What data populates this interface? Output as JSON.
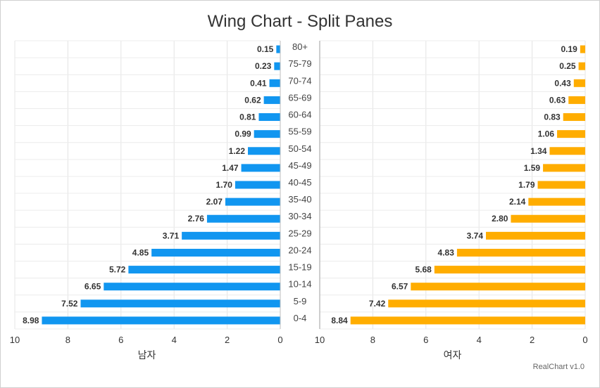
{
  "title": "Wing Chart - Split Panes",
  "credits": "RealChart v1.0",
  "chart_data": {
    "type": "bar",
    "orientation": "horizontal",
    "layout": "wing / split panes",
    "categories": [
      "0-4",
      "5-9",
      "10-14",
      "15-19",
      "20-24",
      "25-29",
      "30-34",
      "35-40",
      "40-45",
      "45-49",
      "50-54",
      "55-59",
      "60-64",
      "65-69",
      "70-74",
      "75-79",
      "80+"
    ],
    "series": [
      {
        "name": "남자",
        "color": "#1196f0",
        "values": [
          8.98,
          7.52,
          6.65,
          5.72,
          4.85,
          3.71,
          2.76,
          2.07,
          1.7,
          1.47,
          1.22,
          0.99,
          0.81,
          0.62,
          0.41,
          0.23,
          0.15
        ]
      },
      {
        "name": "여자",
        "color": "#ffad00",
        "values": [
          8.84,
          7.42,
          6.57,
          5.68,
          4.83,
          3.74,
          2.8,
          2.14,
          1.79,
          1.59,
          1.34,
          1.06,
          0.83,
          0.63,
          0.43,
          0.25,
          0.19
        ]
      }
    ],
    "xlim": [
      0,
      10
    ],
    "xticks": [
      "10",
      "8",
      "6",
      "4",
      "2",
      "0"
    ],
    "left_axis_title": "남자",
    "right_axis_title": "여자",
    "grid": true,
    "value_labels": true
  }
}
